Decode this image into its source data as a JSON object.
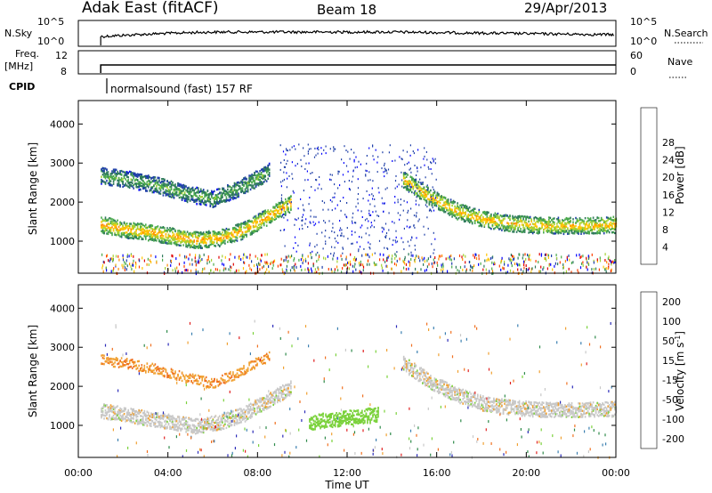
{
  "header": {
    "station": "Adak East (fitACF)",
    "beam": "Beam 18",
    "date": "29/Apr/2013"
  },
  "param_panels": {
    "nsky_label": "N.Sky",
    "nsky_ticks": [
      "10^5",
      "10^0"
    ],
    "nsearch_label": "N.Search",
    "nsearch_ticks": [
      "10^5",
      "10^0"
    ],
    "freq_label": "Freq.",
    "freq_units": "[MHz]",
    "freq_ticks": [
      "12",
      "8"
    ],
    "nave_label": "Nave",
    "nave_ticks": [
      "60",
      "0"
    ],
    "cpid_label": "CPID",
    "cpid_text": "normalsound (fast) 157 RF"
  },
  "chart_data": [
    {
      "type": "heatmap",
      "name": "power",
      "ylabel": "Slant Range [km]",
      "y_ticks": [
        "1000",
        "2000",
        "3000",
        "4000"
      ],
      "ylim": [
        180,
        4600
      ],
      "xlim_hours": [
        0,
        24
      ],
      "colorbar": {
        "label": "Power [dB]",
        "ticks": [
          "4",
          "8",
          "12",
          "16",
          "20",
          "24",
          "28"
        ],
        "range": [
          0,
          32
        ],
        "colors": [
          "#0000ff",
          "#1f3fa8",
          "#2e7a5a",
          "#49a94b",
          "#a4d234",
          "#ffc400",
          "#ff8c00",
          "#ff4000",
          "#e00000"
        ]
      },
      "features": [
        {
          "feature": "main scatter band",
          "t_start_h": 1.0,
          "t_end_h": 9.5,
          "range_km": [
            1450,
            1320,
            1250,
            1150,
            1050,
            1100,
            1300,
            1650,
            2000
          ],
          "intensity_db": 22
        },
        {
          "feature": "upper band",
          "t_start_h": 1.0,
          "t_end_h": 8.5,
          "range_km": [
            2700,
            2600,
            2450,
            2250,
            2100,
            2400,
            2800
          ],
          "intensity_db": 13
        },
        {
          "feature": "late band",
          "t_start_h": 14.5,
          "t_end_h": 24.0,
          "range_km": [
            2600,
            2150,
            1800,
            1580,
            1480,
            1430,
            1420,
            1420,
            1440
          ],
          "intensity_db": 21
        }
      ]
    },
    {
      "type": "heatmap",
      "name": "velocity",
      "ylabel": "Slant Range [km]",
      "y_ticks": [
        "1000",
        "2000",
        "3000",
        "4000"
      ],
      "ylim": [
        180,
        4600
      ],
      "xlim_hours": [
        0,
        24
      ],
      "colorbar": {
        "label": "Velocity [m s^-1]",
        "ticks": [
          "200",
          "100",
          "50",
          "15",
          "-15",
          "-50",
          "-100",
          "-200"
        ],
        "colors": [
          "#2a2ab8",
          "#3a7fb0",
          "#2e8a4a",
          "#7ad13a",
          "#c8c8c8",
          "#f0a030",
          "#f07020",
          "#e02020"
        ]
      },
      "features": [
        {
          "feature": "ground scatter band",
          "t_start_h": 1.0,
          "t_end_h": 9.5,
          "range_km": [
            1400,
            1300,
            1200,
            1100,
            1000,
            1100,
            1300,
            1650,
            2000
          ],
          "velocity_ms": 0
        },
        {
          "feature": "late ground scatter",
          "t_start_h": 14.5,
          "t_end_h": 24.0,
          "range_km": [
            2600,
            2150,
            1800,
            1580,
            1480,
            1430,
            1420,
            1420,
            1440
          ],
          "velocity_ms": 0
        },
        {
          "feature": "green patch",
          "t_start_h": 10.3,
          "t_end_h": 13.4,
          "range_km": [
            1100,
            1300
          ],
          "velocity_ms": 30
        }
      ]
    }
  ],
  "xaxis": {
    "label": "Time UT",
    "ticks": [
      "00:00",
      "04:00",
      "08:00",
      "12:00",
      "16:00",
      "20:00",
      "00:00"
    ]
  }
}
